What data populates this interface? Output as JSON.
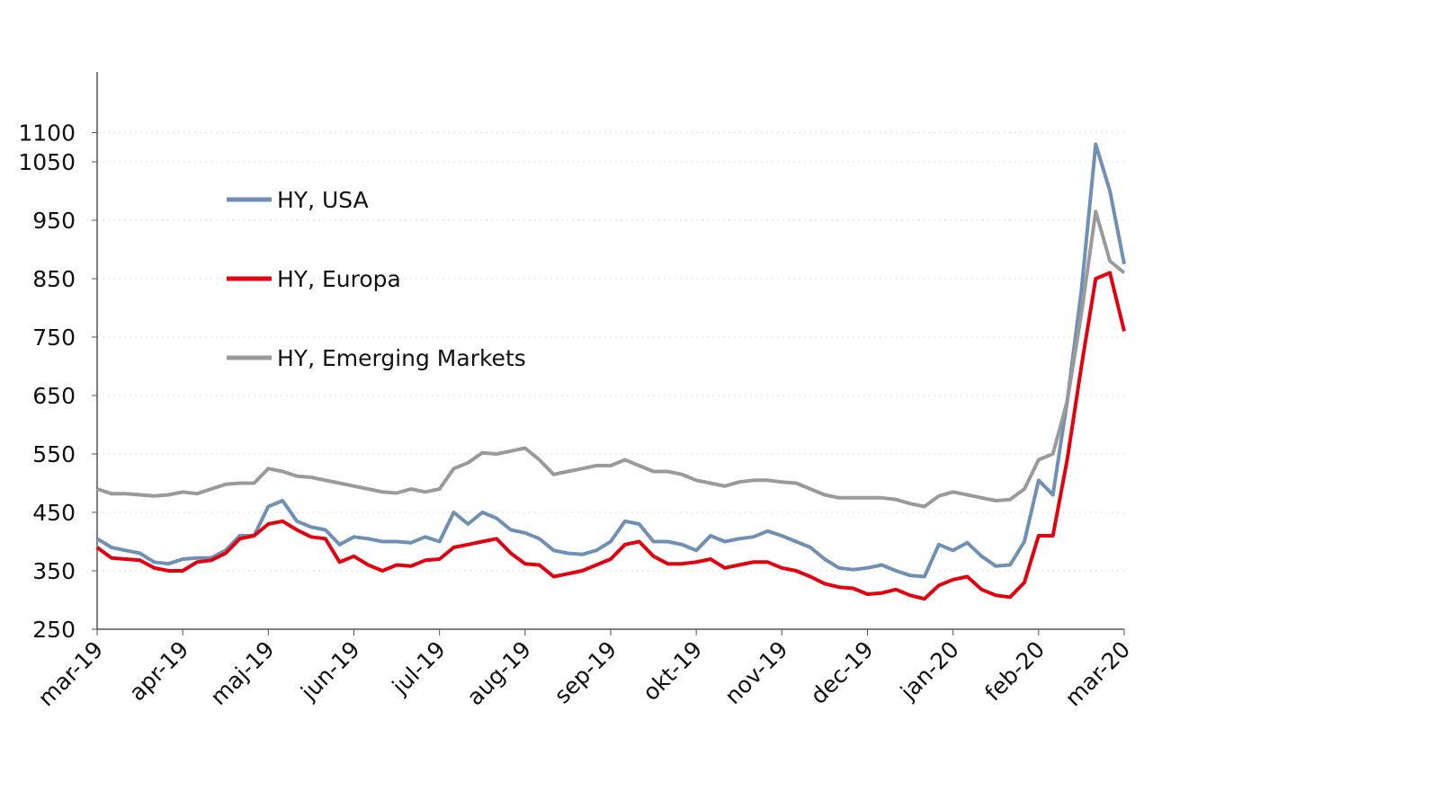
{
  "chart_data": {
    "type": "line",
    "categories": [
      "mar-19",
      null,
      null,
      null,
      null,
      null,
      "apr-19",
      null,
      null,
      null,
      null,
      null,
      "maj-19",
      null,
      null,
      null,
      null,
      null,
      "jun-19",
      null,
      null,
      null,
      null,
      null,
      "jul-19",
      null,
      null,
      null,
      null,
      null,
      "aug-19",
      null,
      null,
      null,
      null,
      null,
      "sep-19",
      null,
      null,
      null,
      null,
      null,
      "okt-19",
      null,
      null,
      null,
      null,
      null,
      "nov-19",
      null,
      null,
      null,
      null,
      null,
      "dec-19",
      null,
      null,
      null,
      null,
      null,
      "jan-20",
      null,
      null,
      null,
      null,
      null,
      "feb-20",
      null,
      null,
      null,
      null,
      null,
      "mar-20"
    ],
    "series": [
      {
        "name": "HY, USA",
        "color": "#6f8fb5",
        "values": [
          405,
          390,
          385,
          380,
          365,
          362,
          370,
          372,
          372,
          385,
          410,
          410,
          460,
          470,
          435,
          425,
          420,
          395,
          408,
          405,
          400,
          400,
          398,
          408,
          400,
          450,
          430,
          450,
          440,
          420,
          415,
          405,
          385,
          380,
          378,
          385,
          400,
          435,
          430,
          400,
          400,
          395,
          385,
          410,
          400,
          405,
          408,
          418,
          410,
          400,
          390,
          370,
          355,
          352,
          355,
          360,
          350,
          342,
          340,
          395,
          385,
          398,
          375,
          358,
          360,
          400,
          505,
          480,
          640,
          830,
          1080,
          1000,
          875
        ]
      },
      {
        "name": "HY, Europa",
        "color": "#e3000f",
        "values": [
          390,
          372,
          370,
          368,
          355,
          350,
          350,
          365,
          368,
          380,
          405,
          410,
          430,
          435,
          420,
          408,
          405,
          365,
          375,
          360,
          350,
          360,
          358,
          368,
          370,
          390,
          395,
          400,
          405,
          380,
          362,
          360,
          340,
          345,
          350,
          360,
          370,
          395,
          400,
          375,
          362,
          362,
          365,
          370,
          355,
          360,
          365,
          365,
          355,
          350,
          340,
          328,
          322,
          320,
          310,
          312,
          318,
          308,
          302,
          325,
          335,
          340,
          318,
          308,
          305,
          330,
          410,
          410,
          540,
          700,
          850,
          860,
          760
        ]
      },
      {
        "name": "HY, Emerging Markets",
        "color": "#9a9a9a",
        "values": [
          490,
          482,
          482,
          480,
          478,
          480,
          485,
          482,
          490,
          498,
          500,
          500,
          525,
          520,
          512,
          510,
          505,
          500,
          495,
          490,
          485,
          483,
          490,
          485,
          490,
          525,
          535,
          552,
          550,
          555,
          560,
          540,
          515,
          520,
          525,
          530,
          530,
          540,
          530,
          520,
          520,
          515,
          505,
          500,
          495,
          502,
          505,
          505,
          502,
          500,
          490,
          480,
          475,
          475,
          475,
          475,
          472,
          465,
          460,
          478,
          485,
          480,
          475,
          470,
          472,
          490,
          540,
          550,
          640,
          790,
          965,
          880,
          860
        ]
      }
    ],
    "ylim": [
      250,
      1200
    ],
    "yticks": [
      250,
      350,
      450,
      550,
      650,
      750,
      850,
      950,
      1050,
      1100
    ],
    "grid": true
  }
}
